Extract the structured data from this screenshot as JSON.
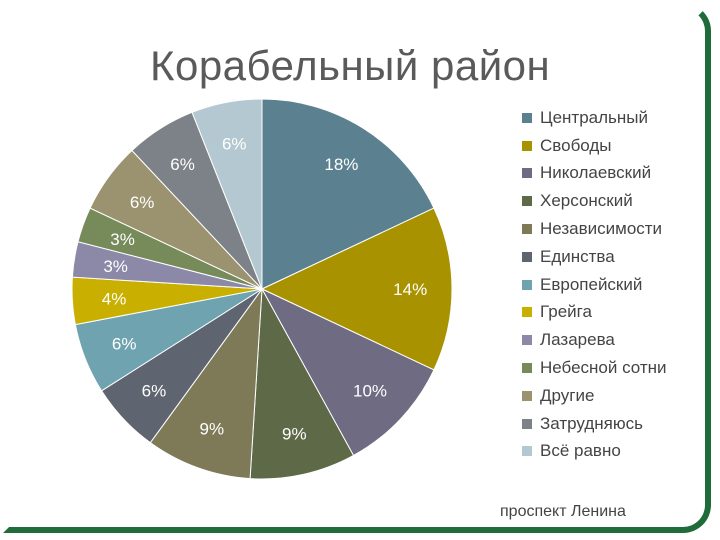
{
  "chart_data": {
    "type": "pie",
    "title": "Корабельный район",
    "caption": "проспект Ленина",
    "slices": [
      {
        "label": "Центральный",
        "value": 18,
        "value_label": "18%",
        "color": "#5b8090"
      },
      {
        "label": "Свободы",
        "value": 14,
        "value_label": "14%",
        "color": "#a89200"
      },
      {
        "label": "Николаевский",
        "value": 10,
        "value_label": "10%",
        "color": "#6f6b82"
      },
      {
        "label": "Херсонский",
        "value": 9,
        "value_label": "9%",
        "color": "#5e6a47"
      },
      {
        "label": "Независимости",
        "value": 9,
        "value_label": "9%",
        "color": "#7e7a58"
      },
      {
        "label": "Единства",
        "value": 6,
        "value_label": "6%",
        "color": "#5f6570"
      },
      {
        "label": "Европейский",
        "value": 6,
        "value_label": "6%",
        "color": "#6fa3b0"
      },
      {
        "label": "Грейга",
        "value": 4,
        "value_label": "4%",
        "color": "#c9b000"
      },
      {
        "label": "Лазарева",
        "value": 3,
        "value_label": "3%",
        "color": "#8c89a8"
      },
      {
        "label": "Небесной сотни",
        "value": 3,
        "value_label": "3%",
        "color": "#768a5a"
      },
      {
        "label": "Другие",
        "value": 6,
        "value_label": "6%",
        "color": "#9b9270"
      },
      {
        "label": "Затрудняюсь",
        "value": 6,
        "value_label": "6%",
        "color": "#7d8288"
      },
      {
        "label": "Всё равно",
        "value": 6,
        "value_label": "6%",
        "color": "#b3c8d0"
      }
    ],
    "legend_position": "right"
  }
}
